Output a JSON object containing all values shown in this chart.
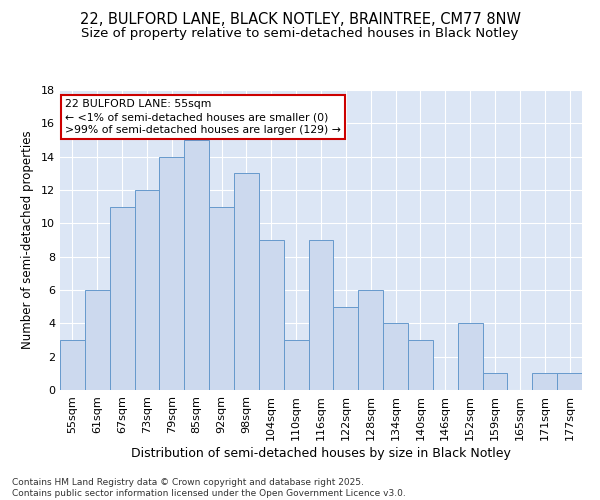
{
  "title1": "22, BULFORD LANE, BLACK NOTLEY, BRAINTREE, CM77 8NW",
  "title2": "Size of property relative to semi-detached houses in Black Notley",
  "xlabel": "Distribution of semi-detached houses by size in Black Notley",
  "ylabel": "Number of semi-detached properties",
  "categories": [
    "55sqm",
    "61sqm",
    "67sqm",
    "73sqm",
    "79sqm",
    "85sqm",
    "92sqm",
    "98sqm",
    "104sqm",
    "110sqm",
    "116sqm",
    "122sqm",
    "128sqm",
    "134sqm",
    "140sqm",
    "146sqm",
    "152sqm",
    "159sqm",
    "165sqm",
    "171sqm",
    "177sqm"
  ],
  "values": [
    3,
    6,
    11,
    12,
    14,
    15,
    11,
    13,
    9,
    3,
    9,
    5,
    6,
    4,
    3,
    0,
    4,
    1,
    0,
    1,
    1
  ],
  "bar_color": "#ccd9ee",
  "bar_edge_color": "#6699cc",
  "annotation_title": "22 BULFORD LANE: 55sqm",
  "annotation_line1": "← <1% of semi-detached houses are smaller (0)",
  "annotation_line2": ">99% of semi-detached houses are larger (129) →",
  "annotation_box_color": "#ffffff",
  "annotation_box_edge": "#cc0000",
  "ylim": [
    0,
    18
  ],
  "yticks": [
    0,
    2,
    4,
    6,
    8,
    10,
    12,
    14,
    16,
    18
  ],
  "bg_color": "#dce6f5",
  "footer": "Contains HM Land Registry data © Crown copyright and database right 2025.\nContains public sector information licensed under the Open Government Licence v3.0.",
  "title1_fontsize": 10.5,
  "title2_fontsize": 9.5,
  "xlabel_fontsize": 9,
  "ylabel_fontsize": 8.5,
  "tick_fontsize": 8,
  "footer_fontsize": 6.5
}
